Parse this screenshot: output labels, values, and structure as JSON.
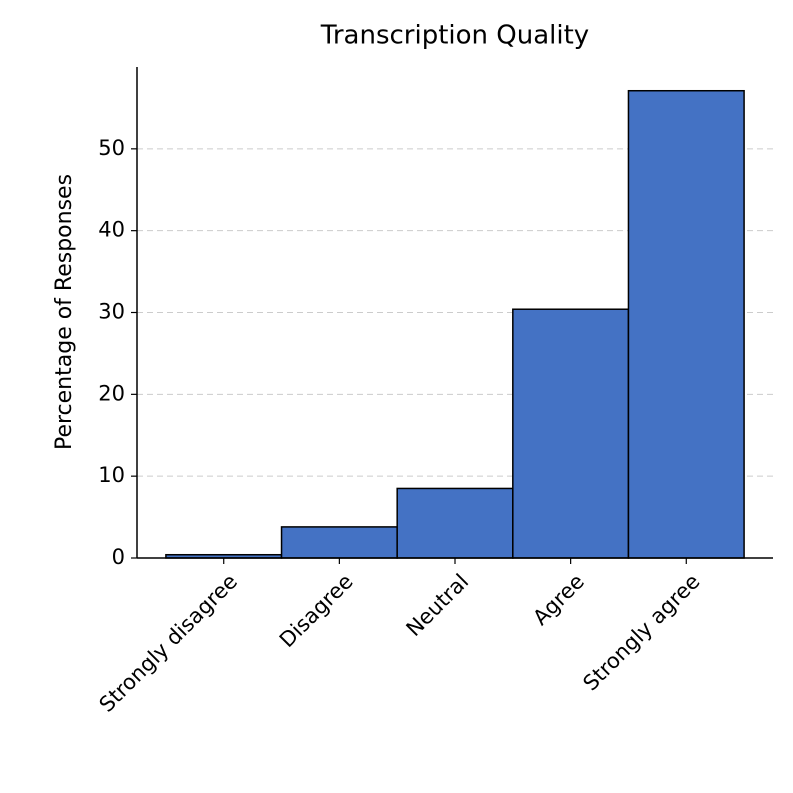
{
  "chart_data": {
    "type": "bar",
    "title": "Transcription Quality",
    "y_label": "Percentage of Responses",
    "categories": [
      "Strongly disagree",
      "Disagree",
      "Neutral",
      "Agree",
      "Strongly agree"
    ],
    "values": [
      0.4,
      3.8,
      8.5,
      30.4,
      57.1
    ],
    "color": "#4472c4",
    "ylim": [
      0,
      60
    ],
    "yticks": [
      0,
      10,
      20,
      30,
      40,
      50
    ],
    "grid": true
  }
}
